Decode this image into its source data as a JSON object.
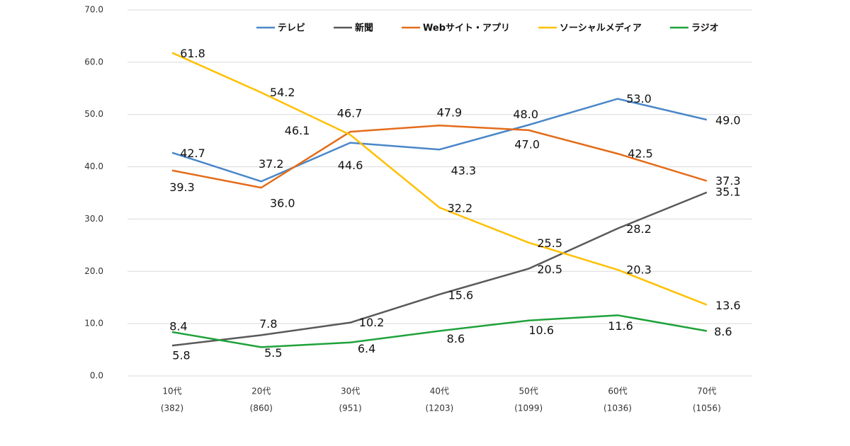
{
  "chart_data": {
    "type": "line",
    "categories": [
      "10代",
      "20代",
      "30代",
      "40代",
      "50代",
      "60代",
      "70代"
    ],
    "category_notes": [
      "(382)",
      "(860)",
      "(951)",
      "(1203)",
      "(1099)",
      "(1036)",
      "(1056)"
    ],
    "ylim": [
      0,
      70
    ],
    "yticks": [
      {
        "value": 0,
        "label": "0.0"
      },
      {
        "value": 10,
        "label": "10.0"
      },
      {
        "value": 20,
        "label": "20.0"
      },
      {
        "value": 30,
        "label": "30.0"
      },
      {
        "value": 40,
        "label": "40.0"
      },
      {
        "value": 50,
        "label": "50.0"
      },
      {
        "value": 60,
        "label": "60.0"
      },
      {
        "value": 70,
        "label": "70.0"
      }
    ],
    "grid": true,
    "series": [
      {
        "name": "テレビ",
        "color": "#4a87c8",
        "values": [
          42.7,
          37.2,
          44.6,
          43.3,
          48.0,
          53.0,
          49.0
        ],
        "value_labels": [
          "42.7",
          "37.2",
          "44.6",
          "43.3",
          "48.0",
          "53.0",
          "49.0"
        ]
      },
      {
        "name": "新聞",
        "color": "#595959",
        "values": [
          5.8,
          7.8,
          10.2,
          15.6,
          20.5,
          28.2,
          35.1
        ],
        "value_labels": [
          "5.8",
          "7.8",
          "10.2",
          "15.6",
          "20.5",
          "28.2",
          "35.1"
        ]
      },
      {
        "name": "Webサイト・アプリ",
        "color": "#e46c1a",
        "values": [
          39.3,
          36.0,
          46.7,
          47.9,
          47.0,
          42.5,
          37.3
        ],
        "value_labels": [
          "39.3",
          "36.0",
          "46.7",
          "47.9",
          "47.0",
          "42.5",
          "37.3"
        ]
      },
      {
        "name": "ソーシャルメディア",
        "color": "#ffc000",
        "values": [
          61.8,
          54.2,
          46.1,
          32.2,
          25.5,
          20.3,
          13.6
        ],
        "value_labels": [
          "61.8",
          "54.2",
          "46.1",
          "32.2",
          "25.5",
          "20.3",
          "13.6"
        ]
      },
      {
        "name": "ラジオ",
        "color": "#1fa23a",
        "values": [
          8.4,
          5.5,
          6.4,
          8.6,
          10.6,
          11.6,
          8.6
        ],
        "value_labels": [
          "8.4",
          "5.5",
          "6.4",
          "8.6",
          "10.6",
          "11.6",
          "8.6"
        ]
      }
    ]
  }
}
